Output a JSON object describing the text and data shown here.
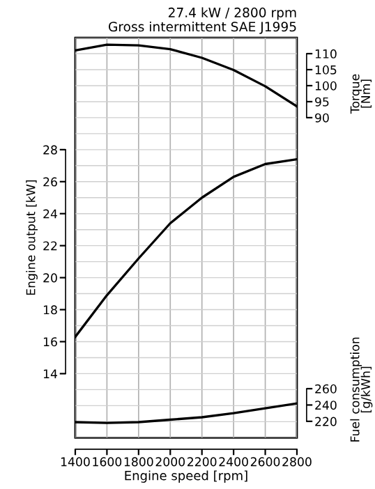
{
  "chart_data": {
    "type": "line",
    "title": "27.4 kW / 2800 rpm",
    "subtitle": "Gross intermittent SAE J1995",
    "xlabel": "Engine speed [rpm]",
    "ylabel": "Engine output [kW]",
    "y2label": "Torque\n[Nm]",
    "y3label": "Fuel consumption\n[g/kWh]",
    "x": [
      1400,
      1600,
      1800,
      2000,
      2200,
      2400,
      2600,
      2800
    ],
    "series": [
      {
        "color": "#000000",
        "values": [
          16.3,
          18.9,
          21.2,
          23.4,
          25.0,
          26.3,
          27.1,
          27.4
        ]
      },
      {
        "color": "#000000",
        "axis": "y2",
        "values": [
          111.0,
          112.8,
          112.6,
          111.4,
          108.7,
          104.9,
          99.8,
          93.5
        ]
      },
      {
        "color": "#000000",
        "axis": "y3",
        "values": [
          219,
          218,
          219,
          222,
          225,
          230,
          236,
          242
        ]
      }
    ],
    "xlim": [
      1400,
      2800
    ],
    "xticks": [
      1400,
      1600,
      1800,
      2000,
      2200,
      2400,
      2600,
      2800
    ],
    "ylim": [
      10,
      35
    ],
    "yticks": [
      14,
      16,
      18,
      20,
      22,
      24,
      26,
      28
    ],
    "y2lim": [
      -10,
      115
    ],
    "y2ticks": [
      90,
      95,
      100,
      105,
      110
    ],
    "y3lim": [
      200,
      690
    ],
    "y3ticks": [
      220,
      240,
      260
    ],
    "grid": true,
    "line_style": "solid",
    "marker": "none"
  }
}
